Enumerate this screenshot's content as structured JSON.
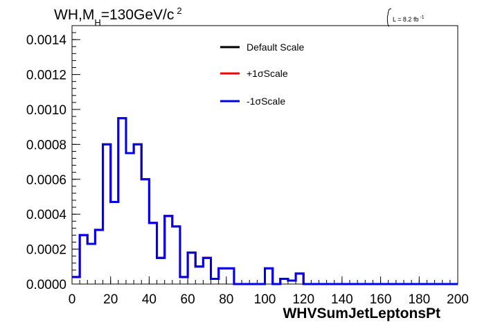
{
  "chart_data": {
    "type": "line",
    "title_main": "WH,M",
    "title_sub": "H",
    "title_rest": "=130GeV/c",
    "title_sup": "2",
    "lumi_label": "L = 8.2 fb",
    "lumi_sup": "-1",
    "xlabel": "WHVSumJetLeptonsPt",
    "ylabel": "",
    "xlim": [
      0,
      200
    ],
    "ylim": [
      0,
      0.00148
    ],
    "x_ticks": [
      "0",
      "20",
      "40",
      "60",
      "80",
      "100",
      "120",
      "140",
      "160",
      "180",
      "200"
    ],
    "y_ticks": [
      "0.0000",
      "0.0002",
      "0.0004",
      "0.0006",
      "0.0008",
      "0.0010",
      "0.0012",
      "0.0014"
    ],
    "bin_width": 4,
    "bin_edges_start": 0,
    "series": [
      {
        "name": "Default Scale",
        "color": "#000000",
        "values": [
          4e-05,
          0.00028,
          0.00023,
          0.00031,
          0.0008,
          0.00047,
          0.00095,
          0.00075,
          0.0008,
          0.0006,
          0.00035,
          0.00015,
          0.00039,
          0.00033,
          4e-05,
          0.00018,
          0.0001,
          0.00015,
          3e-05,
          9e-05,
          9e-05,
          0.0,
          0.0,
          0.0,
          0.0,
          9e-05,
          0.0,
          3e-05,
          2e-05,
          6e-05,
          0.0,
          0.0,
          0.0,
          0.0,
          0.0,
          0.0,
          0.0,
          0.0,
          0.0,
          0.0,
          0.0,
          0.0,
          0.0,
          0.0,
          0.0,
          0.0,
          0.0,
          0.0,
          0.0,
          0.0
        ]
      },
      {
        "name": "+1σScale",
        "color": "#ff0000",
        "values": [
          4e-05,
          0.00028,
          0.00023,
          0.00031,
          0.0008,
          0.00047,
          0.00095,
          0.00075,
          0.0008,
          0.0006,
          0.00035,
          0.00015,
          0.00039,
          0.00033,
          4e-05,
          0.00018,
          0.0001,
          0.00015,
          3e-05,
          9e-05,
          9e-05,
          0.0,
          0.0,
          0.0,
          0.0,
          9e-05,
          0.0,
          3e-05,
          2e-05,
          6e-05,
          0.0,
          0.0,
          0.0,
          0.0,
          0.0,
          0.0,
          0.0,
          0.0,
          0.0,
          0.0,
          0.0,
          0.0,
          0.0,
          0.0,
          0.0,
          0.0,
          0.0,
          0.0,
          0.0,
          0.0
        ]
      },
      {
        "name": "-1σScale",
        "color": "#0000ee",
        "values": [
          4e-05,
          0.00028,
          0.00023,
          0.00031,
          0.0008,
          0.00047,
          0.00095,
          0.00075,
          0.0008,
          0.0006,
          0.00035,
          0.00015,
          0.00039,
          0.00033,
          4e-05,
          0.00018,
          0.0001,
          0.00015,
          3e-05,
          9e-05,
          9e-05,
          0.0,
          0.0,
          0.0,
          0.0,
          9e-05,
          0.0,
          3e-05,
          2e-05,
          6e-05,
          0.0,
          0.0,
          0.0,
          0.0,
          0.0,
          0.0,
          0.0,
          0.0,
          0.0,
          0.0,
          0.0,
          0.0,
          0.0,
          0.0,
          0.0,
          0.0,
          0.0,
          0.0,
          0.0,
          0.0
        ]
      }
    ],
    "legend_position": "top-right",
    "grid": false
  }
}
